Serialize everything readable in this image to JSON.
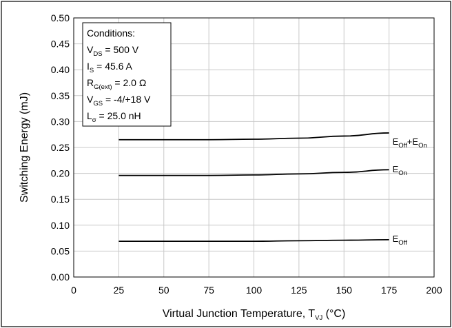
{
  "chart_data": {
    "type": "line",
    "xlabel": {
      "main": "Virtual Junction Temperature, T",
      "sub": "VJ",
      "tail": " (°C)"
    },
    "ylabel": "Switching Energy (mJ)",
    "xlim": [
      0,
      200
    ],
    "ylim": [
      0,
      0.5
    ],
    "xticks": [
      "0",
      "25",
      "50",
      "75",
      "100",
      "125",
      "150",
      "175",
      "200"
    ],
    "yticks": [
      "0.00",
      "0.05",
      "0.10",
      "0.15",
      "0.20",
      "0.25",
      "0.30",
      "0.35",
      "0.40",
      "0.45",
      "0.50"
    ],
    "grid": true,
    "series": [
      {
        "name": {
          "main": "E",
          "sub": "Off",
          "mid": "+E",
          "sub2": "On"
        },
        "x": [
          25,
          50,
          75,
          100,
          125,
          150,
          175
        ],
        "y": [
          0.265,
          0.265,
          0.265,
          0.266,
          0.268,
          0.272,
          0.278
        ]
      },
      {
        "name": {
          "main": "E",
          "sub": "On"
        },
        "x": [
          25,
          50,
          75,
          100,
          125,
          150,
          175
        ],
        "y": [
          0.196,
          0.196,
          0.196,
          0.197,
          0.199,
          0.202,
          0.207
        ]
      },
      {
        "name": {
          "main": "E",
          "sub": "Off"
        },
        "x": [
          25,
          50,
          75,
          100,
          125,
          150,
          175
        ],
        "y": [
          0.069,
          0.069,
          0.069,
          0.069,
          0.07,
          0.071,
          0.072
        ]
      }
    ],
    "conditions": {
      "title": "Conditions:",
      "lines": [
        {
          "main": "V",
          "sub": "DS",
          "rest": " = 500 V"
        },
        {
          "main": "I",
          "sub": "S",
          "rest": " = 45.6 A"
        },
        {
          "main": "R",
          "sub": "G(ext)",
          "rest": " = 2.0 Ω"
        },
        {
          "main": "V",
          "sub": "GS",
          "rest": " = -4/+18 V"
        },
        {
          "main": "L",
          "sub": "σ",
          "rest": " = 25.0 nH"
        }
      ]
    }
  }
}
